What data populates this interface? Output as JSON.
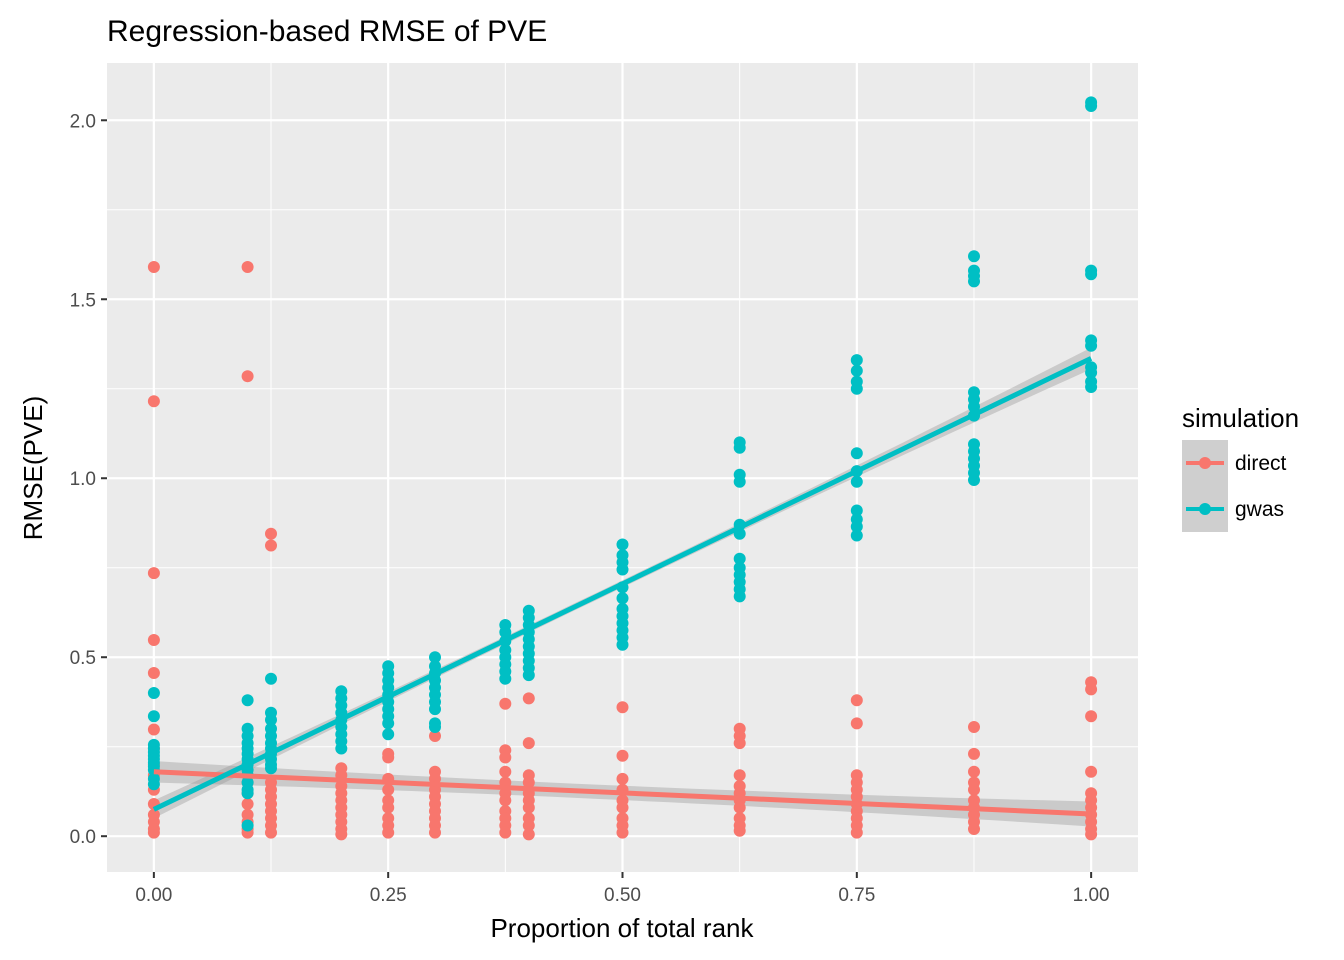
{
  "chart_data": {
    "type": "scatter",
    "title": "Regression-based RMSE of PVE",
    "xlabel": "Proportion of total rank",
    "ylabel": "RMSE(PVE)",
    "xlim": [
      -0.05,
      1.05
    ],
    "ylim": [
      -0.1,
      2.16
    ],
    "x_ticks": [
      0.0,
      0.25,
      0.5,
      0.75,
      1.0
    ],
    "x_tick_labels": [
      "0.00",
      "0.25",
      "0.50",
      "0.75",
      "1.00"
    ],
    "y_ticks": [
      0.0,
      0.5,
      1.0,
      1.5,
      2.0
    ],
    "y_tick_labels": [
      "0.0",
      "0.5",
      "1.0",
      "1.5",
      "2.0"
    ],
    "grid": true,
    "legend": {
      "title": "simulation",
      "position": "right"
    },
    "series": [
      {
        "name": "direct",
        "color": "#F8766D",
        "fit": {
          "intercept": 0.18,
          "slope": -0.118,
          "se_band": [
            0.03,
            0.02,
            0.035
          ]
        },
        "points": [
          [
            0,
            1.59
          ],
          [
            0,
            1.215
          ],
          [
            0,
            0.735
          ],
          [
            0,
            0.548
          ],
          [
            0,
            0.456
          ],
          [
            0,
            0.298
          ],
          [
            0,
            0.245
          ],
          [
            0,
            0.2
          ],
          [
            0,
            0.17
          ],
          [
            0,
            0.13
          ],
          [
            0,
            0.09
          ],
          [
            0,
            0.06
          ],
          [
            0,
            0.04
          ],
          [
            0,
            0.02
          ],
          [
            0,
            0.01
          ],
          [
            0.1,
            1.59
          ],
          [
            0.1,
            1.285
          ],
          [
            0.1,
            0.15
          ],
          [
            0.1,
            0.12
          ],
          [
            0.1,
            0.09
          ],
          [
            0.1,
            0.06
          ],
          [
            0.1,
            0.04
          ],
          [
            0.1,
            0.02
          ],
          [
            0.1,
            0.01
          ],
          [
            0.125,
            0.845
          ],
          [
            0.125,
            0.812
          ],
          [
            0.125,
            0.15
          ],
          [
            0.125,
            0.13
          ],
          [
            0.125,
            0.11
          ],
          [
            0.125,
            0.09
          ],
          [
            0.125,
            0.07
          ],
          [
            0.125,
            0.05
          ],
          [
            0.125,
            0.03
          ],
          [
            0.125,
            0.01
          ],
          [
            0.2,
            0.19
          ],
          [
            0.2,
            0.17
          ],
          [
            0.2,
            0.14
          ],
          [
            0.2,
            0.12
          ],
          [
            0.2,
            0.1
          ],
          [
            0.2,
            0.08
          ],
          [
            0.2,
            0.06
          ],
          [
            0.2,
            0.04
          ],
          [
            0.2,
            0.02
          ],
          [
            0.2,
            0.005
          ],
          [
            0.25,
            0.23
          ],
          [
            0.25,
            0.22
          ],
          [
            0.25,
            0.16
          ],
          [
            0.25,
            0.13
          ],
          [
            0.25,
            0.1
          ],
          [
            0.25,
            0.08
          ],
          [
            0.25,
            0.05
          ],
          [
            0.25,
            0.03
          ],
          [
            0.25,
            0.01
          ],
          [
            0.3,
            0.28
          ],
          [
            0.3,
            0.18
          ],
          [
            0.3,
            0.16
          ],
          [
            0.3,
            0.13
          ],
          [
            0.3,
            0.11
          ],
          [
            0.3,
            0.09
          ],
          [
            0.3,
            0.07
          ],
          [
            0.3,
            0.05
          ],
          [
            0.3,
            0.03
          ],
          [
            0.3,
            0.01
          ],
          [
            0.375,
            0.37
          ],
          [
            0.375,
            0.24
          ],
          [
            0.375,
            0.22
          ],
          [
            0.375,
            0.18
          ],
          [
            0.375,
            0.15
          ],
          [
            0.375,
            0.12
          ],
          [
            0.375,
            0.1
          ],
          [
            0.375,
            0.07
          ],
          [
            0.375,
            0.05
          ],
          [
            0.375,
            0.03
          ],
          [
            0.375,
            0.01
          ],
          [
            0.4,
            0.385
          ],
          [
            0.4,
            0.26
          ],
          [
            0.4,
            0.17
          ],
          [
            0.4,
            0.15
          ],
          [
            0.4,
            0.12
          ],
          [
            0.4,
            0.1
          ],
          [
            0.4,
            0.08
          ],
          [
            0.4,
            0.05
          ],
          [
            0.4,
            0.03
          ],
          [
            0.4,
            0.005
          ],
          [
            0.5,
            0.36
          ],
          [
            0.5,
            0.225
          ],
          [
            0.5,
            0.16
          ],
          [
            0.5,
            0.13
          ],
          [
            0.5,
            0.1
          ],
          [
            0.5,
            0.08
          ],
          [
            0.5,
            0.05
          ],
          [
            0.5,
            0.03
          ],
          [
            0.5,
            0.01
          ],
          [
            0.625,
            0.3
          ],
          [
            0.625,
            0.28
          ],
          [
            0.625,
            0.26
          ],
          [
            0.625,
            0.17
          ],
          [
            0.625,
            0.14
          ],
          [
            0.625,
            0.12
          ],
          [
            0.625,
            0.1
          ],
          [
            0.625,
            0.08
          ],
          [
            0.625,
            0.05
          ],
          [
            0.625,
            0.03
          ],
          [
            0.625,
            0.015
          ],
          [
            0.75,
            0.38
          ],
          [
            0.75,
            0.315
          ],
          [
            0.75,
            0.17
          ],
          [
            0.75,
            0.15
          ],
          [
            0.75,
            0.13
          ],
          [
            0.75,
            0.11
          ],
          [
            0.75,
            0.09
          ],
          [
            0.75,
            0.07
          ],
          [
            0.75,
            0.05
          ],
          [
            0.75,
            0.03
          ],
          [
            0.75,
            0.01
          ],
          [
            0.875,
            0.305
          ],
          [
            0.875,
            0.23
          ],
          [
            0.875,
            0.18
          ],
          [
            0.875,
            0.15
          ],
          [
            0.875,
            0.13
          ],
          [
            0.875,
            0.1
          ],
          [
            0.875,
            0.08
          ],
          [
            0.875,
            0.06
          ],
          [
            0.875,
            0.04
          ],
          [
            0.875,
            0.02
          ],
          [
            1.0,
            0.43
          ],
          [
            1.0,
            0.41
          ],
          [
            1.0,
            0.335
          ],
          [
            1.0,
            0.18
          ],
          [
            1.0,
            0.12
          ],
          [
            1.0,
            0.1
          ],
          [
            1.0,
            0.08
          ],
          [
            1.0,
            0.06
          ],
          [
            1.0,
            0.04
          ],
          [
            1.0,
            0.02
          ],
          [
            1.0,
            0.005
          ]
        ]
      },
      {
        "name": "gwas",
        "color": "#00BFC4",
        "fit": {
          "intercept": 0.075,
          "slope": 1.26,
          "se_band": [
            0.025,
            0.01,
            0.03
          ]
        },
        "points": [
          [
            0,
            0.4
          ],
          [
            0,
            0.335
          ],
          [
            0,
            0.255
          ],
          [
            0,
            0.245
          ],
          [
            0,
            0.235
          ],
          [
            0,
            0.225
          ],
          [
            0,
            0.215
          ],
          [
            0,
            0.205
          ],
          [
            0,
            0.195
          ],
          [
            0,
            0.185
          ],
          [
            0,
            0.16
          ],
          [
            0,
            0.145
          ],
          [
            0.1,
            0.38
          ],
          [
            0.1,
            0.3
          ],
          [
            0.1,
            0.28
          ],
          [
            0.1,
            0.26
          ],
          [
            0.1,
            0.245
          ],
          [
            0.1,
            0.23
          ],
          [
            0.1,
            0.215
          ],
          [
            0.1,
            0.2
          ],
          [
            0.1,
            0.185
          ],
          [
            0.1,
            0.17
          ],
          [
            0.1,
            0.15
          ],
          [
            0.1,
            0.13
          ],
          [
            0.1,
            0.12
          ],
          [
            0.1,
            0.03
          ],
          [
            0.125,
            0.44
          ],
          [
            0.125,
            0.345
          ],
          [
            0.125,
            0.325
          ],
          [
            0.125,
            0.3
          ],
          [
            0.125,
            0.28
          ],
          [
            0.125,
            0.26
          ],
          [
            0.125,
            0.245
          ],
          [
            0.125,
            0.23
          ],
          [
            0.125,
            0.215
          ],
          [
            0.125,
            0.2
          ],
          [
            0.125,
            0.19
          ],
          [
            0.2,
            0.405
          ],
          [
            0.2,
            0.385
          ],
          [
            0.2,
            0.365
          ],
          [
            0.2,
            0.345
          ],
          [
            0.2,
            0.325
          ],
          [
            0.2,
            0.305
          ],
          [
            0.2,
            0.285
          ],
          [
            0.2,
            0.265
          ],
          [
            0.2,
            0.245
          ],
          [
            0.25,
            0.475
          ],
          [
            0.25,
            0.455
          ],
          [
            0.25,
            0.435
          ],
          [
            0.25,
            0.415
          ],
          [
            0.25,
            0.395
          ],
          [
            0.25,
            0.375
          ],
          [
            0.25,
            0.355
          ],
          [
            0.25,
            0.335
          ],
          [
            0.25,
            0.315
          ],
          [
            0.25,
            0.285
          ],
          [
            0.3,
            0.5
          ],
          [
            0.3,
            0.475
          ],
          [
            0.3,
            0.455
          ],
          [
            0.3,
            0.435
          ],
          [
            0.3,
            0.415
          ],
          [
            0.3,
            0.395
          ],
          [
            0.3,
            0.375
          ],
          [
            0.3,
            0.355
          ],
          [
            0.3,
            0.315
          ],
          [
            0.3,
            0.305
          ],
          [
            0.375,
            0.59
          ],
          [
            0.375,
            0.57
          ],
          [
            0.375,
            0.545
          ],
          [
            0.375,
            0.52
          ],
          [
            0.375,
            0.5
          ],
          [
            0.375,
            0.48
          ],
          [
            0.375,
            0.46
          ],
          [
            0.375,
            0.44
          ],
          [
            0.4,
            0.63
          ],
          [
            0.4,
            0.61
          ],
          [
            0.4,
            0.59
          ],
          [
            0.4,
            0.57
          ],
          [
            0.4,
            0.55
          ],
          [
            0.4,
            0.53
          ],
          [
            0.4,
            0.51
          ],
          [
            0.4,
            0.49
          ],
          [
            0.4,
            0.47
          ],
          [
            0.4,
            0.45
          ],
          [
            0.5,
            0.815
          ],
          [
            0.5,
            0.785
          ],
          [
            0.5,
            0.765
          ],
          [
            0.5,
            0.745
          ],
          [
            0.5,
            0.695
          ],
          [
            0.5,
            0.665
          ],
          [
            0.5,
            0.635
          ],
          [
            0.5,
            0.615
          ],
          [
            0.5,
            0.595
          ],
          [
            0.5,
            0.575
          ],
          [
            0.5,
            0.555
          ],
          [
            0.5,
            0.535
          ],
          [
            0.625,
            1.1
          ],
          [
            0.625,
            1.085
          ],
          [
            0.625,
            1.01
          ],
          [
            0.625,
            0.99
          ],
          [
            0.625,
            0.87
          ],
          [
            0.625,
            0.845
          ],
          [
            0.625,
            0.775
          ],
          [
            0.625,
            0.75
          ],
          [
            0.625,
            0.73
          ],
          [
            0.625,
            0.71
          ],
          [
            0.625,
            0.69
          ],
          [
            0.625,
            0.67
          ],
          [
            0.75,
            1.33
          ],
          [
            0.75,
            1.3
          ],
          [
            0.75,
            1.27
          ],
          [
            0.75,
            1.25
          ],
          [
            0.75,
            1.07
          ],
          [
            0.75,
            1.02
          ],
          [
            0.75,
            0.99
          ],
          [
            0.75,
            0.91
          ],
          [
            0.75,
            0.885
          ],
          [
            0.75,
            0.865
          ],
          [
            0.75,
            0.84
          ],
          [
            0.875,
            1.62
          ],
          [
            0.875,
            1.58
          ],
          [
            0.875,
            1.565
          ],
          [
            0.875,
            1.55
          ],
          [
            0.875,
            1.24
          ],
          [
            0.875,
            1.22
          ],
          [
            0.875,
            1.2
          ],
          [
            0.875,
            1.175
          ],
          [
            0.875,
            1.095
          ],
          [
            0.875,
            1.075
          ],
          [
            0.875,
            1.055
          ],
          [
            0.875,
            1.035
          ],
          [
            0.875,
            1.015
          ],
          [
            0.875,
            0.995
          ],
          [
            1.0,
            2.05
          ],
          [
            1.0,
            2.04
          ],
          [
            1.0,
            1.58
          ],
          [
            1.0,
            1.57
          ],
          [
            1.0,
            1.385
          ],
          [
            1.0,
            1.37
          ],
          [
            1.0,
            1.31
          ],
          [
            1.0,
            1.295
          ],
          [
            1.0,
            1.27
          ],
          [
            1.0,
            1.255
          ]
        ]
      }
    ]
  }
}
